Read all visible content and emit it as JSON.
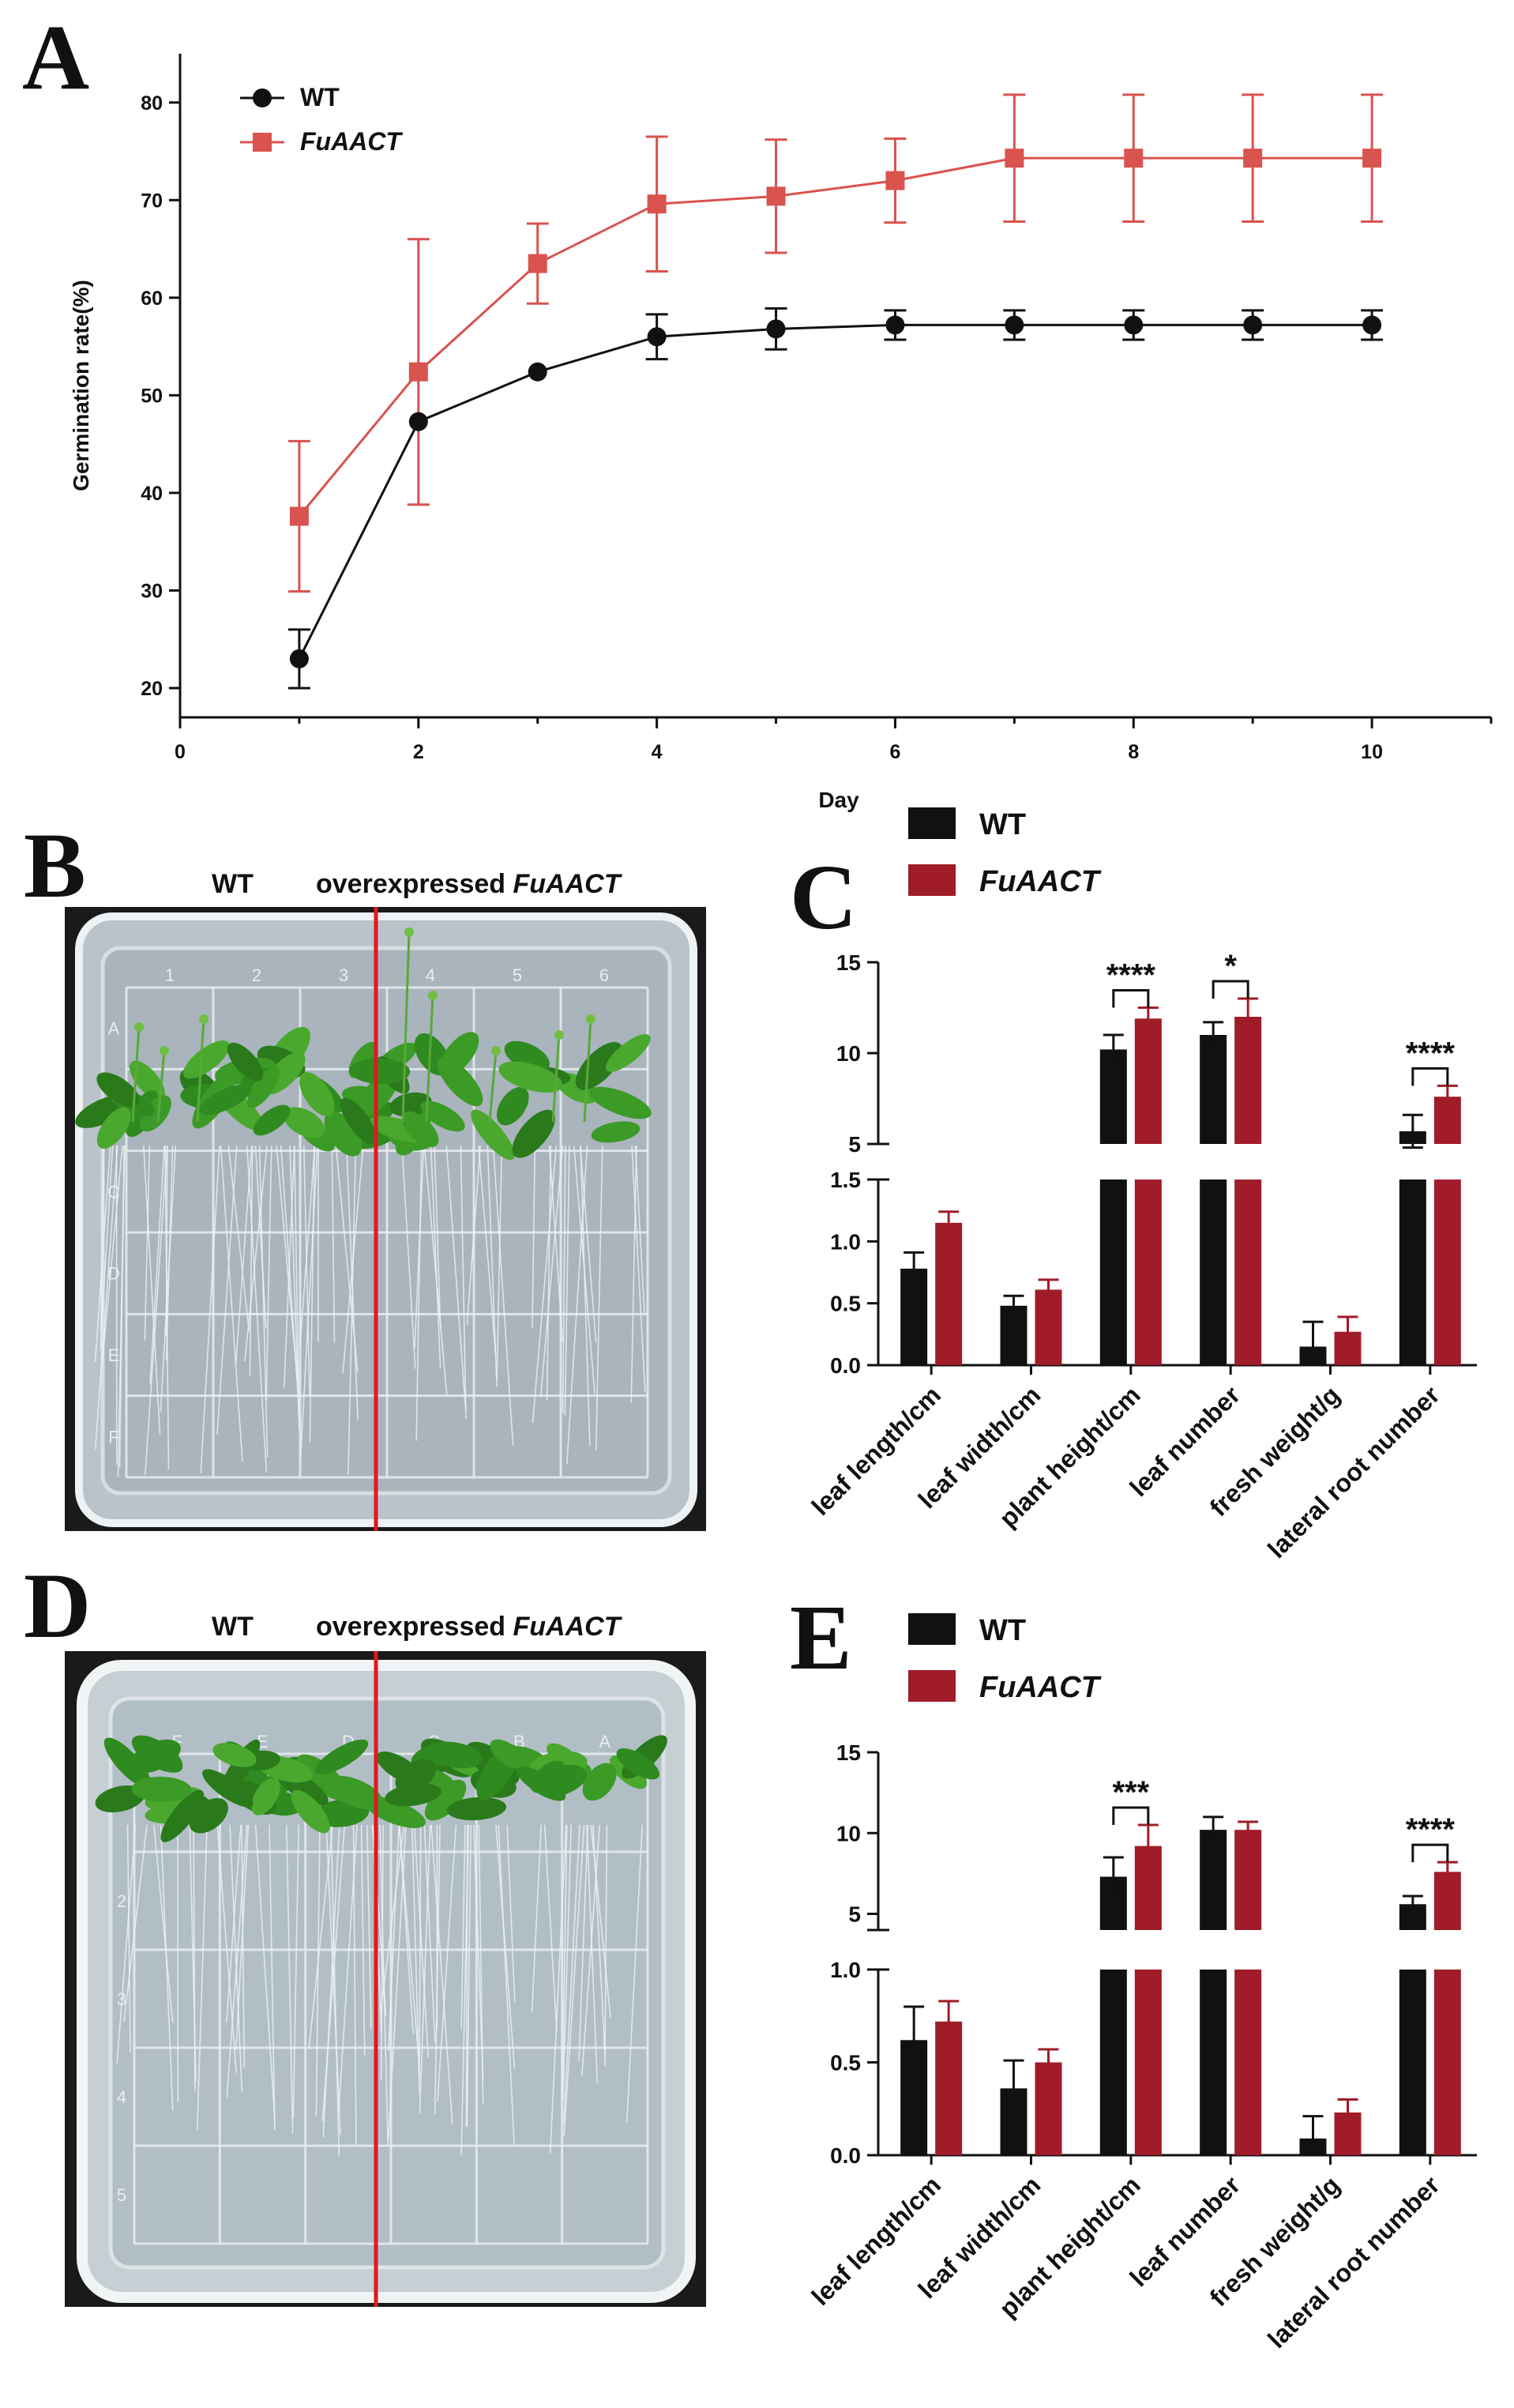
{
  "panels": {
    "A": "A",
    "B": "B",
    "C": "C",
    "D": "D",
    "E": "E"
  },
  "colors": {
    "wt": "#111111",
    "fu_line": "#d9534f",
    "fu_bar": "#a01c28",
    "grid": "#ffffff",
    "cut": "#e0191f"
  },
  "photos": {
    "B": {
      "left_label": "WT",
      "right_label_prefix": "overexpressed ",
      "right_label_italic": "FuAACT",
      "grid_top": [
        "1",
        "2",
        "3",
        "4",
        "5",
        "6"
      ],
      "grid_side": [
        "A",
        "B",
        "C",
        "D",
        "E",
        "F"
      ]
    },
    "D": {
      "left_label": "WT",
      "right_label_prefix": "overexpressed ",
      "right_label_italic": "FuAACT",
      "grid_top": [
        "F",
        "E",
        "D",
        "C",
        "B",
        "A"
      ],
      "grid_side": [
        "1",
        "2",
        "3",
        "4",
        "5"
      ]
    }
  },
  "chart_data": [
    {
      "panel": "A",
      "type": "line",
      "xlabel": "Day",
      "ylabel": "Germination rate(%)",
      "xlim": [
        0,
        11
      ],
      "ylim": [
        17,
        85
      ],
      "xticks": [
        "0",
        "2",
        "4",
        "6",
        "8",
        "10"
      ],
      "yticks": [
        "20",
        "30",
        "40",
        "50",
        "60",
        "70",
        "80"
      ],
      "legend_position": "top-left",
      "series": [
        {
          "name": "WT",
          "marker": "circle",
          "x": [
            1,
            2,
            3,
            4,
            5,
            6,
            7,
            8,
            9,
            10
          ],
          "y": [
            23.0,
            47.3,
            52.4,
            56.0,
            56.8,
            57.2,
            57.2,
            57.2,
            57.2,
            57.2
          ],
          "err": [
            3.0,
            0.0,
            0.0,
            2.3,
            2.1,
            1.5,
            1.5,
            1.5,
            1.5,
            1.5
          ]
        },
        {
          "name": "FuAACT",
          "marker": "square",
          "x": [
            1,
            2,
            3,
            4,
            5,
            6,
            7,
            8,
            9,
            10
          ],
          "y": [
            37.6,
            52.4,
            63.5,
            69.6,
            70.4,
            72.0,
            74.3,
            74.3,
            74.3,
            74.3
          ],
          "err": [
            7.7,
            13.6,
            4.1,
            6.9,
            5.8,
            4.3,
            6.5,
            6.5,
            6.5,
            6.5
          ]
        }
      ]
    },
    {
      "panel": "C",
      "type": "bar",
      "categories": [
        "leaf length/cm",
        "leaf width/cm",
        "plant height/cm",
        "leaf number",
        "fresh weight/g",
        "lateral root number"
      ],
      "axis_break": {
        "lower_ylim": [
          0,
          1.5
        ],
        "lower_ticks": [
          "0.0",
          "0.5",
          "1.0",
          "1.5"
        ],
        "upper_ylim": [
          5,
          15
        ],
        "upper_ticks": [
          "5",
          "10",
          "15"
        ]
      },
      "legend_position": "top-left",
      "series": [
        {
          "name": "WT",
          "values": [
            0.78,
            0.48,
            10.2,
            11.0,
            0.15,
            5.7
          ],
          "err": [
            0.13,
            0.08,
            0.8,
            0.7,
            0.2,
            0.9
          ]
        },
        {
          "name": "FuAACT",
          "values": [
            1.15,
            0.61,
            11.9,
            12.0,
            0.27,
            7.6
          ],
          "err": [
            0.09,
            0.08,
            0.6,
            1.0,
            0.12,
            0.6
          ]
        }
      ],
      "significance": [
        {
          "category": 2,
          "label": "****"
        },
        {
          "category": 3,
          "label": "*"
        },
        {
          "category": 5,
          "label": "****"
        }
      ]
    },
    {
      "panel": "E",
      "type": "bar",
      "categories": [
        "leaf length/cm",
        "leaf width/cm",
        "plant height/cm",
        "leaf number",
        "fresh weight/g",
        "lateral root number"
      ],
      "axis_break": {
        "lower_ylim": [
          0,
          1.0
        ],
        "lower_ticks": [
          "0.0",
          "0.5",
          "1.0"
        ],
        "upper_ylim": [
          4,
          15
        ],
        "upper_ticks": [
          "5",
          "10",
          "15"
        ]
      },
      "legend_position": "top-left",
      "series": [
        {
          "name": "WT",
          "values": [
            0.62,
            0.36,
            7.3,
            10.2,
            0.09,
            5.6
          ],
          "err": [
            0.18,
            0.15,
            1.2,
            0.8,
            0.12,
            0.5
          ]
        },
        {
          "name": "FuAACT",
          "values": [
            0.72,
            0.5,
            9.2,
            10.2,
            0.23,
            7.6
          ],
          "err": [
            0.11,
            0.07,
            1.3,
            0.5,
            0.07,
            0.6
          ]
        }
      ],
      "significance": [
        {
          "category": 2,
          "label": "***"
        },
        {
          "category": 5,
          "label": "****"
        }
      ]
    }
  ]
}
